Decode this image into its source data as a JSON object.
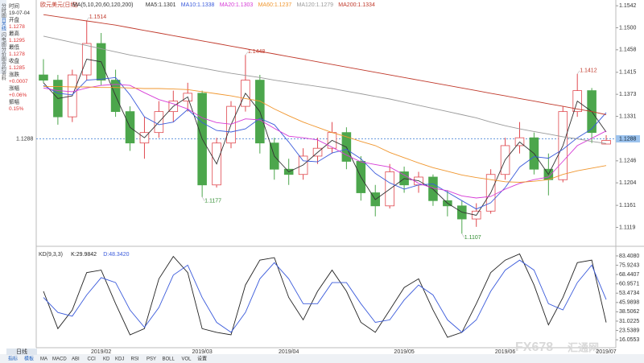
{
  "header": {
    "title": "欧元美元(日线)"
  },
  "sidebar": {
    "tabs": [
      "分时图",
      "日K线",
      "闪电图",
      "分价图",
      "合约资料"
    ],
    "fields": [
      "时间",
      "19-07-04",
      "开盘",
      "1.1278",
      "最高",
      "1.1295",
      "最低",
      "1.1278",
      "收盘",
      "1.1285",
      "涨跌",
      "+0.0007",
      "涨幅",
      "+0.06%",
      "振幅",
      "0.15%"
    ]
  },
  "toolbar": {
    "period": "日线",
    "items": [
      "指标",
      "模板",
      "MA",
      "MACD",
      "ABI",
      "CCI",
      "KD",
      "KDJ",
      "RSI",
      "PSY",
      "BOLL",
      "VOL",
      "设置"
    ]
  },
  "watermark": [
    "FX678",
    "汇通网"
  ],
  "chart_data": [
    {
      "type": "candlestick",
      "legend": [
        "MA(5,10,20,60,120,200)",
        "MA5:1.1301",
        "MA10:1.1338",
        "MA20:1.1303",
        "MA60:1.1237",
        "MA120:1.1279",
        "MA200:1.1334"
      ],
      "categories": [
        null,
        null,
        null,
        null,
        "2019/02",
        null,
        null,
        null,
        null,
        null,
        null,
        "2019/03",
        null,
        null,
        null,
        null,
        null,
        "2019/04",
        null,
        null,
        null,
        null,
        null,
        null,
        null,
        "2019/05",
        null,
        null,
        null,
        null,
        null,
        null,
        "2019/06",
        null,
        null,
        null,
        null,
        null,
        null,
        "2019/07"
      ],
      "open": [
        1.141,
        1.14,
        1.133,
        1.141,
        1.147,
        1.14,
        1.134,
        1.128,
        1.13,
        1.134,
        1.136,
        1.1375,
        1.12,
        1.128,
        1.135,
        1.14,
        1.128,
        1.123,
        1.122,
        1.1255,
        1.127,
        1.13,
        1.1245,
        1.1185,
        1.116,
        1.1225,
        1.12,
        1.1215,
        1.117,
        1.116,
        1.1135,
        1.115,
        1.122,
        1.1275,
        1.129,
        1.123,
        1.121,
        1.134,
        1.138,
        1.1278
      ],
      "high": [
        1.144,
        1.141,
        1.142,
        1.1514,
        1.149,
        1.142,
        1.135,
        1.133,
        1.136,
        1.138,
        1.1395,
        1.138,
        1.129,
        1.136,
        1.1448,
        1.141,
        1.129,
        1.125,
        1.127,
        1.129,
        1.132,
        1.131,
        1.1255,
        1.12,
        1.124,
        1.1235,
        1.1225,
        1.122,
        1.119,
        1.117,
        1.1165,
        1.123,
        1.129,
        1.132,
        1.13,
        1.126,
        1.135,
        1.1412,
        1.1385,
        1.1295
      ],
      "low": [
        1.1395,
        1.1315,
        1.132,
        1.14,
        1.139,
        1.133,
        1.1265,
        1.125,
        1.129,
        1.132,
        1.134,
        1.1177,
        1.1195,
        1.127,
        1.134,
        1.126,
        1.121,
        1.12,
        1.121,
        1.124,
        1.126,
        1.123,
        1.117,
        1.114,
        1.1155,
        1.1185,
        1.1185,
        1.116,
        1.114,
        1.1107,
        1.112,
        1.1145,
        1.121,
        1.126,
        1.122,
        1.118,
        1.1205,
        1.133,
        1.128,
        1.1278
      ],
      "close": [
        1.14,
        1.133,
        1.141,
        1.147,
        1.14,
        1.134,
        1.128,
        1.13,
        1.134,
        1.136,
        1.1375,
        1.12,
        1.128,
        1.135,
        1.14,
        1.128,
        1.123,
        1.122,
        1.1255,
        1.127,
        1.13,
        1.1245,
        1.1185,
        1.116,
        1.1225,
        1.12,
        1.1215,
        1.117,
        1.116,
        1.1135,
        1.115,
        1.122,
        1.1275,
        1.129,
        1.123,
        1.121,
        1.134,
        1.138,
        1.13,
        1.1285
      ],
      "up_color": "#e0494f",
      "down_color": "#4ca64c",
      "series": [
        {
          "color": "#333333",
          "values": [
            1.1395,
            1.1365,
            1.137,
            1.144,
            1.1435,
            1.137,
            1.131,
            1.129,
            1.132,
            1.135,
            1.1368,
            1.1288,
            1.124,
            1.1315,
            1.1375,
            1.134,
            1.1255,
            1.1225,
            1.1238,
            1.1262,
            1.1285,
            1.1272,
            1.1215,
            1.1172,
            1.1192,
            1.1212,
            1.1208,
            1.1192,
            1.1165,
            1.1148,
            1.1142,
            1.1185,
            1.1248,
            1.1282,
            1.126,
            1.122,
            1.1275,
            1.136,
            1.134,
            1.1301
          ]
        },
        {
          "color": "#3b5bdb",
          "values": [
            1.139,
            1.1375,
            1.1372,
            1.14,
            1.1402,
            1.1405,
            1.1372,
            1.133,
            1.1315,
            1.132,
            1.1344,
            1.1319,
            1.1304,
            1.1301,
            1.1307,
            1.1327,
            1.1315,
            1.1282,
            1.1246,
            1.1244,
            1.1261,
            1.1268,
            1.125,
            1.1222,
            1.1204,
            1.1192,
            1.12,
            1.1202,
            1.1186,
            1.117,
            1.1154,
            1.1166,
            1.1195,
            1.1234,
            1.1254,
            1.1251,
            1.1268,
            1.129,
            1.1307,
            1.1338
          ]
        },
        {
          "color": "#d63bd6",
          "values": [
            1.1385,
            1.138,
            1.1378,
            1.1385,
            1.139,
            1.1392,
            1.139,
            1.1376,
            1.1363,
            1.1355,
            1.1345,
            1.1328,
            1.1319,
            1.1316,
            1.1326,
            1.1324,
            1.1308,
            1.1293,
            1.129,
            1.1286,
            1.1272,
            1.1257,
            1.1244,
            1.1239,
            1.1234,
            1.1219,
            1.1203,
            1.1194,
            1.1189,
            1.1179,
            1.1175,
            1.1178,
            1.1192,
            1.1203,
            1.121,
            1.1215,
            1.1245,
            1.1275,
            1.1289,
            1.1303
          ]
        },
        {
          "color": "#f0962e",
          "values": [
            1.1388,
            1.1388,
            1.1387,
            1.1387,
            1.1386,
            1.1386,
            1.1385,
            1.1384,
            1.1384,
            1.1383,
            1.1382,
            1.1378,
            1.1374,
            1.137,
            1.1365,
            1.136,
            1.1345,
            1.1332,
            1.132,
            1.131,
            1.13,
            1.1292,
            1.1283,
            1.1275,
            1.1262,
            1.1252,
            1.1242,
            1.1233,
            1.1226,
            1.1219,
            1.1214,
            1.121,
            1.1206,
            1.1205,
            1.1207,
            1.121,
            1.122,
            1.1227,
            1.1232,
            1.1237
          ]
        },
        {
          "color": "#9a9a9a",
          "values": [
            1.1484,
            1.1478,
            1.1472,
            1.1466,
            1.146,
            1.1454,
            1.1448,
            1.1443,
            1.1438,
            1.1433,
            1.1428,
            1.1423,
            1.1418,
            1.1413,
            1.1409,
            1.1405,
            1.14,
            1.1396,
            1.1392,
            1.1388,
            1.1384,
            1.1379,
            1.1374,
            1.1369,
            1.1364,
            1.1358,
            1.1352,
            1.1346,
            1.134,
            1.1334,
            1.1328,
            1.132,
            1.1313,
            1.1307,
            1.1302,
            1.1297,
            1.1292,
            1.1288,
            1.1283,
            1.1279
          ]
        },
        {
          "color": "#c0392b",
          "values": [
            1.1525,
            1.1521,
            1.1517,
            1.1513,
            1.1509,
            1.1505,
            1.15,
            1.1495,
            1.149,
            1.1485,
            1.148,
            1.1475,
            1.147,
            1.1465,
            1.146,
            1.1455,
            1.145,
            1.1445,
            1.144,
            1.1435,
            1.143,
            1.1425,
            1.142,
            1.1415,
            1.141,
            1.1405,
            1.14,
            1.1395,
            1.139,
            1.1385,
            1.138,
            1.1375,
            1.137,
            1.1365,
            1.136,
            1.1355,
            1.135,
            1.1345,
            1.134,
            1.1334
          ]
        }
      ],
      "last_price": 1.1288,
      "ylim": [
        1.1089,
        1.1553
      ],
      "yticks": [
        {
          "value": 1.1542,
          "label": "1.1542"
        },
        {
          "value": 1.15,
          "label": "1.1500"
        },
        {
          "value": 1.1458,
          "label": "1.1458"
        },
        {
          "value": 1.1415,
          "label": "1.1415"
        },
        {
          "value": 1.1373,
          "label": "1.1373"
        },
        {
          "value": 1.1331,
          "label": "1.1331"
        },
        {
          "value": 1.1288,
          "label": "1.1288"
        },
        {
          "value": 1.1246,
          "label": "1.1246"
        },
        {
          "value": 1.1204,
          "label": "1.1204"
        },
        {
          "value": 1.1161,
          "label": "1.1161"
        },
        {
          "value": 1.1119,
          "label": "1.1119"
        }
      ]
    },
    {
      "type": "line",
      "legend": [
        "KD(9,3,3)",
        "K:29.9842",
        "D:48.3420"
      ],
      "series": [
        {
          "color": "#222222",
          "values": [
            55,
            25,
            40,
            70,
            72,
            45,
            20,
            25,
            65,
            83,
            70,
            25,
            22,
            20,
            60,
            80,
            82,
            50,
            32,
            55,
            72,
            55,
            30,
            22,
            40,
            58,
            65,
            40,
            18,
            22,
            45,
            70,
            80,
            85,
            60,
            28,
            50,
            78,
            80,
            29.9842
          ]
        },
        {
          "color": "#3b5bdb",
          "values": [
            50,
            38,
            35,
            52,
            66,
            62,
            40,
            26,
            42,
            68,
            76,
            50,
            30,
            22,
            38,
            65,
            78,
            65,
            45,
            45,
            62,
            62,
            45,
            30,
            32,
            48,
            60,
            52,
            32,
            22,
            32,
            55,
            72,
            80,
            72,
            45,
            40,
            62,
            76,
            48.342
          ]
        }
      ],
      "ylim": [
        9.66,
        87.25
      ],
      "yticks": [
        {
          "value": 83.408,
          "label": "83.4080"
        },
        {
          "value": 75.9243,
          "label": "75.9243"
        },
        {
          "value": 68.4407,
          "label": "68.4407"
        },
        {
          "value": 60.9571,
          "label": "60.9571"
        },
        {
          "value": 53.4734,
          "label": "53.4734"
        },
        {
          "value": 45.9898,
          "label": "45.9898"
        },
        {
          "value": 38.5062,
          "label": "38.5062"
        },
        {
          "value": 31.0225,
          "label": "31.0225"
        },
        {
          "value": 23.5389,
          "label": "23.5389"
        },
        {
          "value": 16.0553,
          "label": "16.0553"
        }
      ]
    }
  ]
}
